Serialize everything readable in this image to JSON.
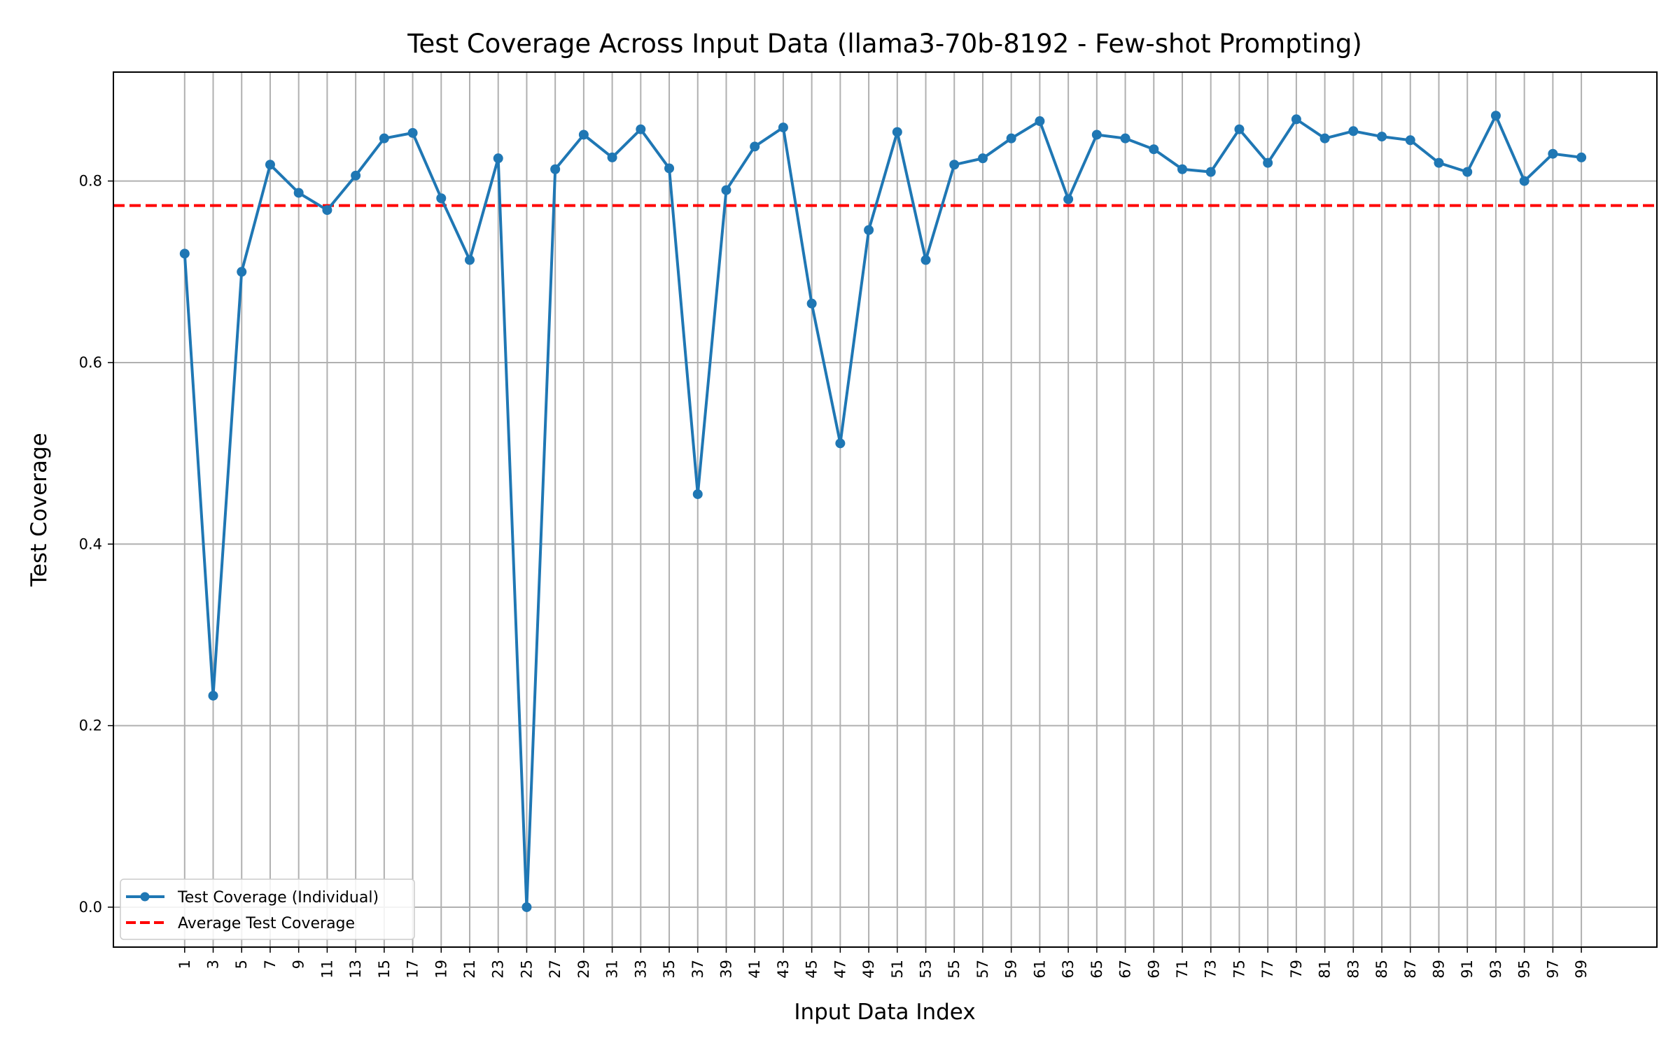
{
  "chart_data": {
    "type": "line",
    "title": "Test Coverage Across Input Data (llama3-70b-8192 - Few-shot Prompting)",
    "xlabel": "Input Data Index",
    "ylabel": "Test Coverage",
    "x": [
      1,
      3,
      5,
      7,
      9,
      11,
      13,
      15,
      17,
      19,
      21,
      23,
      25,
      27,
      29,
      31,
      33,
      35,
      37,
      39,
      41,
      43,
      45,
      47,
      49,
      51,
      53,
      55,
      57,
      59,
      61,
      63,
      65,
      67,
      69,
      71,
      73,
      75,
      77,
      79,
      81,
      83,
      85,
      87,
      89,
      91,
      93,
      95,
      97,
      99
    ],
    "xticks": [
      "1",
      "3",
      "5",
      "7",
      "9",
      "11",
      "13",
      "15",
      "17",
      "19",
      "21",
      "23",
      "25",
      "27",
      "29",
      "31",
      "33",
      "35",
      "37",
      "39",
      "41",
      "43",
      "45",
      "47",
      "49",
      "51",
      "53",
      "55",
      "57",
      "59",
      "61",
      "63",
      "65",
      "67",
      "69",
      "71",
      "73",
      "75",
      "77",
      "79",
      "81",
      "83",
      "85",
      "87",
      "89",
      "91",
      "93",
      "95",
      "97",
      "99"
    ],
    "xlim": [
      -4.0,
      104.3
    ],
    "ylim": [
      -0.044,
      0.92
    ],
    "yticks": [
      0.0,
      0.2,
      0.4,
      0.6,
      0.8
    ],
    "ytick_labels": [
      "0.0",
      "0.2",
      "0.4",
      "0.6",
      "0.8"
    ],
    "grid": true,
    "legend_position": "lower-left",
    "series": [
      {
        "name": "Test Coverage (Individual)",
        "color": "#1f77b4",
        "style": "solid-with-markers",
        "values": [
          0.72,
          0.233,
          0.7,
          0.818,
          0.787,
          0.768,
          0.806,
          0.847,
          0.853,
          0.781,
          0.713,
          0.825,
          0.0,
          0.813,
          0.851,
          0.826,
          0.857,
          0.814,
          0.455,
          0.79,
          0.838,
          0.859,
          0.665,
          0.511,
          0.746,
          0.854,
          0.713,
          0.818,
          0.825,
          0.847,
          0.866,
          0.78,
          0.851,
          0.847,
          0.835,
          0.813,
          0.81,
          0.857,
          0.82,
          0.868,
          0.847,
          0.855,
          0.849,
          0.845,
          0.82,
          0.81,
          0.872,
          0.8,
          0.83,
          0.826
        ]
      },
      {
        "name": "Average Test Coverage",
        "color": "#ff0000",
        "style": "dashed",
        "y": 0.773
      }
    ]
  }
}
